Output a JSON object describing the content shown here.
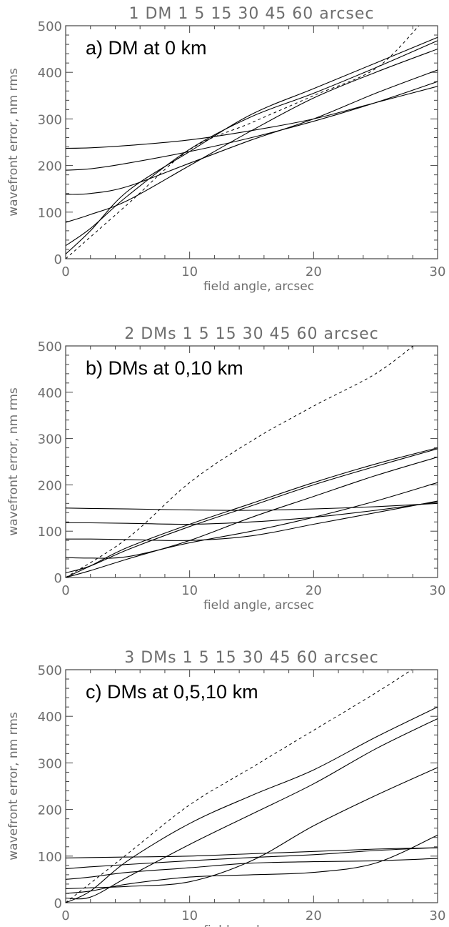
{
  "chart_data": [
    {
      "type": "line",
      "title": "1 DM 1 5 15 30 45 60 arcsec",
      "annotation": "a) DM at 0 km",
      "xlabel": "field angle, arcsec",
      "ylabel": "wavefront error, nm rms",
      "xlim": [
        0,
        30
      ],
      "ylim": [
        0,
        500
      ],
      "x_ticks": [
        "0",
        "10",
        "20",
        "30"
      ],
      "y_ticks": [
        "0",
        "100",
        "200",
        "300",
        "400",
        "500"
      ],
      "grid": false,
      "series": [
        {
          "style": "dashed",
          "x": [
            0,
            5,
            10,
            15,
            20,
            25,
            28.5
          ],
          "y": [
            0,
            117,
            234,
            292,
            350,
            408,
            500
          ]
        },
        {
          "style": "solid",
          "x": [
            0,
            2,
            5,
            10,
            15,
            20,
            25,
            30
          ],
          "y": [
            10,
            60,
            145,
            230,
            310,
            365,
            420,
            475
          ]
        },
        {
          "style": "solid",
          "x": [
            0,
            2,
            5,
            10,
            15,
            20,
            25,
            30
          ],
          "y": [
            28,
            65,
            135,
            235,
            305,
            355,
            410,
            468
          ]
        },
        {
          "style": "solid",
          "x": [
            0,
            2,
            5,
            10,
            15,
            20,
            25,
            30
          ],
          "y": [
            78,
            95,
            125,
            200,
            275,
            345,
            400,
            450
          ]
        },
        {
          "style": "solid",
          "x": [
            0,
            2,
            5,
            10,
            15,
            20,
            25,
            30
          ],
          "y": [
            138,
            140,
            155,
            205,
            255,
            300,
            355,
            405
          ]
        },
        {
          "style": "solid",
          "x": [
            0,
            2,
            5,
            10,
            15,
            20,
            25,
            30
          ],
          "y": [
            190,
            193,
            205,
            230,
            260,
            295,
            335,
            380
          ]
        },
        {
          "style": "solid",
          "x": [
            0,
            2,
            5,
            10,
            15,
            20,
            25,
            30
          ],
          "y": [
            237,
            238,
            243,
            255,
            275,
            300,
            335,
            370
          ]
        }
      ]
    },
    {
      "type": "line",
      "title": "2 DMs 1 5 15 30 45 60 arcsec",
      "annotation": "b) DMs at 0,10 km",
      "xlabel": "field angle, arcsec",
      "ylabel": "wavefront error, nm rms",
      "xlim": [
        0,
        30
      ],
      "ylim": [
        0,
        500
      ],
      "x_ticks": [
        "0",
        "10",
        "20",
        "30"
      ],
      "y_ticks": [
        "0",
        "100",
        "200",
        "300",
        "400",
        "500"
      ],
      "grid": false,
      "series": [
        {
          "style": "dashed",
          "x": [
            0,
            5,
            10,
            15,
            20,
            25,
            28.5
          ],
          "y": [
            0,
            85,
            205,
            295,
            370,
            440,
            510
          ]
        },
        {
          "style": "solid",
          "x": [
            0,
            2,
            5,
            10,
            15,
            20,
            25,
            30
          ],
          "y": [
            0,
            25,
            65,
            115,
            160,
            205,
            245,
            280
          ]
        },
        {
          "style": "solid",
          "x": [
            0,
            2,
            5,
            10,
            15,
            20,
            25,
            30
          ],
          "y": [
            10,
            25,
            60,
            110,
            155,
            200,
            240,
            278
          ]
        },
        {
          "style": "solid",
          "x": [
            0,
            2,
            5,
            10,
            15,
            20,
            25,
            30
          ],
          "y": [
            0,
            15,
            40,
            80,
            130,
            175,
            220,
            260
          ]
        },
        {
          "style": "solid",
          "x": [
            0,
            2,
            5,
            10,
            15,
            20,
            25,
            30
          ],
          "y": [
            43,
            42,
            45,
            75,
            100,
            130,
            165,
            205
          ]
        },
        {
          "style": "solid",
          "x": [
            0,
            2,
            5,
            10,
            15,
            20,
            25,
            30
          ],
          "y": [
            83,
            83,
            82,
            80,
            90,
            115,
            140,
            165
          ]
        },
        {
          "style": "solid",
          "x": [
            0,
            2,
            5,
            10,
            15,
            20,
            25,
            30
          ],
          "y": [
            118,
            118,
            117,
            115,
            120,
            130,
            145,
            163
          ]
        },
        {
          "style": "solid",
          "x": [
            0,
            2,
            5,
            10,
            15,
            20,
            25,
            30
          ],
          "y": [
            150,
            149,
            148,
            146,
            145,
            148,
            153,
            160
          ]
        }
      ]
    },
    {
      "type": "line",
      "title": "3 DMs 1 5 15 30 45 60 arcsec",
      "annotation": "c) DMs at 0,5,10 km",
      "xlabel": "field angle, arcsec",
      "ylabel": "wavefront error, nm rms",
      "xlim": [
        0,
        30
      ],
      "ylim": [
        0,
        500
      ],
      "x_ticks": [
        "0",
        "10",
        "20",
        "30"
      ],
      "y_ticks": [
        "0",
        "100",
        "200",
        "300",
        "400",
        "500"
      ],
      "grid": false,
      "series": [
        {
          "style": "dashed",
          "x": [
            0,
            5,
            10,
            15,
            20,
            25,
            28.5
          ],
          "y": [
            0,
            105,
            210,
            290,
            370,
            450,
            510
          ]
        },
        {
          "style": "solid",
          "x": [
            0,
            2,
            5,
            10,
            15,
            20,
            25,
            30
          ],
          "y": [
            0,
            25,
            90,
            170,
            230,
            285,
            355,
            420
          ]
        },
        {
          "style": "solid",
          "x": [
            0,
            2,
            5,
            10,
            15,
            20,
            25,
            30
          ],
          "y": [
            10,
            12,
            55,
            125,
            190,
            255,
            330,
            395
          ]
        },
        {
          "style": "solid",
          "x": [
            0,
            2,
            5,
            10,
            15,
            20,
            25,
            30
          ],
          "y": [
            30,
            32,
            35,
            45,
            90,
            165,
            230,
            290
          ]
        },
        {
          "style": "solid",
          "x": [
            0,
            2,
            5,
            10,
            15,
            20,
            25,
            30
          ],
          "y": [
            20,
            25,
            40,
            55,
            60,
            65,
            85,
            145
          ]
        },
        {
          "style": "solid",
          "x": [
            0,
            2,
            5,
            10,
            15,
            20,
            25,
            30
          ],
          "y": [
            50,
            55,
            65,
            75,
            85,
            88,
            90,
            95
          ]
        },
        {
          "style": "solid",
          "x": [
            0,
            2,
            5,
            10,
            15,
            20,
            25,
            30
          ],
          "y": [
            73,
            77,
            82,
            90,
            97,
            103,
            112,
            118
          ]
        },
        {
          "style": "solid",
          "x": [
            0,
            2,
            5,
            10,
            15,
            20,
            25,
            30
          ],
          "y": [
            96,
            97,
            98,
            100,
            105,
            110,
            115,
            118
          ]
        }
      ]
    }
  ]
}
